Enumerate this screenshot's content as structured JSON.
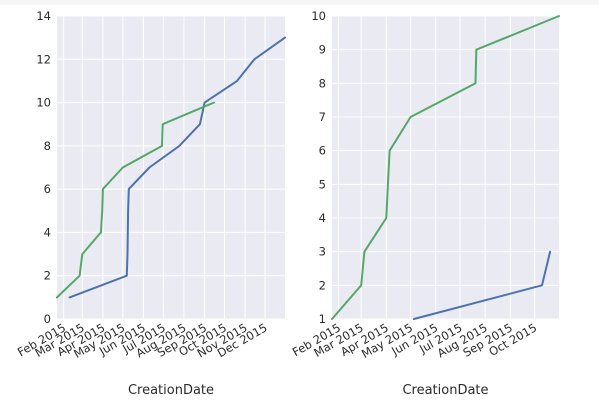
{
  "chart_data": [
    {
      "type": "line",
      "xlabel": "CreationDate",
      "ylim": [
        0,
        14
      ],
      "xlim": [
        "2015-01-22",
        "2015-12-31"
      ],
      "yticks": [
        0,
        2,
        4,
        6,
        8,
        10,
        12,
        14
      ],
      "xticks": [
        {
          "date": "2015-02-01",
          "label": "Feb 2015"
        },
        {
          "date": "2015-03-01",
          "label": "Mar 2015"
        },
        {
          "date": "2015-04-01",
          "label": "Apr 2015"
        },
        {
          "date": "2015-05-01",
          "label": "May 2015"
        },
        {
          "date": "2015-06-01",
          "label": "Jun 2015"
        },
        {
          "date": "2015-07-01",
          "label": "Jul 2015"
        },
        {
          "date": "2015-08-01",
          "label": "Aug 2015"
        },
        {
          "date": "2015-09-01",
          "label": "Sep 2015"
        },
        {
          "date": "2015-10-01",
          "label": "Oct 2015"
        },
        {
          "date": "2015-11-01",
          "label": "Nov 2015"
        },
        {
          "date": "2015-12-01",
          "label": "Dec 2015"
        }
      ],
      "grid": true,
      "series": [
        {
          "color": "#4c72b0",
          "points": [
            [
              "2015-02-10",
              1
            ],
            [
              "2015-05-07",
              2
            ],
            [
              "2015-05-08",
              3
            ],
            [
              "2015-05-09",
              5
            ],
            [
              "2015-05-10",
              6
            ],
            [
              "2015-06-10",
              7
            ],
            [
              "2015-07-25",
              8
            ],
            [
              "2015-08-25",
              9
            ],
            [
              "2015-09-01",
              10
            ],
            [
              "2015-10-20",
              11
            ],
            [
              "2015-11-15",
              12
            ],
            [
              "2015-12-31",
              13
            ]
          ]
        },
        {
          "color": "#55a868",
          "points": [
            [
              "2015-01-22",
              1
            ],
            [
              "2015-02-25",
              2
            ],
            [
              "2015-03-01",
              3
            ],
            [
              "2015-03-29",
              4
            ],
            [
              "2015-03-31",
              5
            ],
            [
              "2015-04-01",
              6
            ],
            [
              "2015-05-01",
              7
            ],
            [
              "2015-06-29",
              8
            ],
            [
              "2015-06-30",
              9
            ],
            [
              "2015-09-15",
              10
            ]
          ]
        }
      ]
    },
    {
      "type": "line",
      "xlabel": "CreationDate",
      "ylim": [
        1,
        10
      ],
      "xlim": [
        "2015-01-24",
        "2015-10-31"
      ],
      "yticks": [
        1,
        2,
        3,
        4,
        5,
        6,
        7,
        8,
        9,
        10
      ],
      "xticks": [
        {
          "date": "2015-02-01",
          "label": "Feb 2015"
        },
        {
          "date": "2015-03-01",
          "label": "Mar 2015"
        },
        {
          "date": "2015-04-01",
          "label": "Apr 2015"
        },
        {
          "date": "2015-05-01",
          "label": "May 2015"
        },
        {
          "date": "2015-06-01",
          "label": "Jun 2015"
        },
        {
          "date": "2015-07-01",
          "label": "Jul 2015"
        },
        {
          "date": "2015-08-01",
          "label": "Aug 2015"
        },
        {
          "date": "2015-09-01",
          "label": "Sep 2015"
        },
        {
          "date": "2015-10-01",
          "label": "Oct 2015"
        }
      ],
      "grid": true,
      "series": [
        {
          "color": "#4c72b0",
          "points": [
            [
              "2015-05-05",
              1
            ],
            [
              "2015-10-10",
              2
            ],
            [
              "2015-10-20",
              3
            ]
          ]
        },
        {
          "color": "#55a868",
          "points": [
            [
              "2015-01-24",
              1
            ],
            [
              "2015-03-01",
              2
            ],
            [
              "2015-03-05",
              3
            ],
            [
              "2015-04-01",
              4
            ],
            [
              "2015-04-03",
              5
            ],
            [
              "2015-04-05",
              6
            ],
            [
              "2015-05-01",
              7
            ],
            [
              "2015-07-20",
              8
            ],
            [
              "2015-07-21",
              9
            ],
            [
              "2015-10-31",
              10
            ]
          ]
        }
      ]
    }
  ]
}
